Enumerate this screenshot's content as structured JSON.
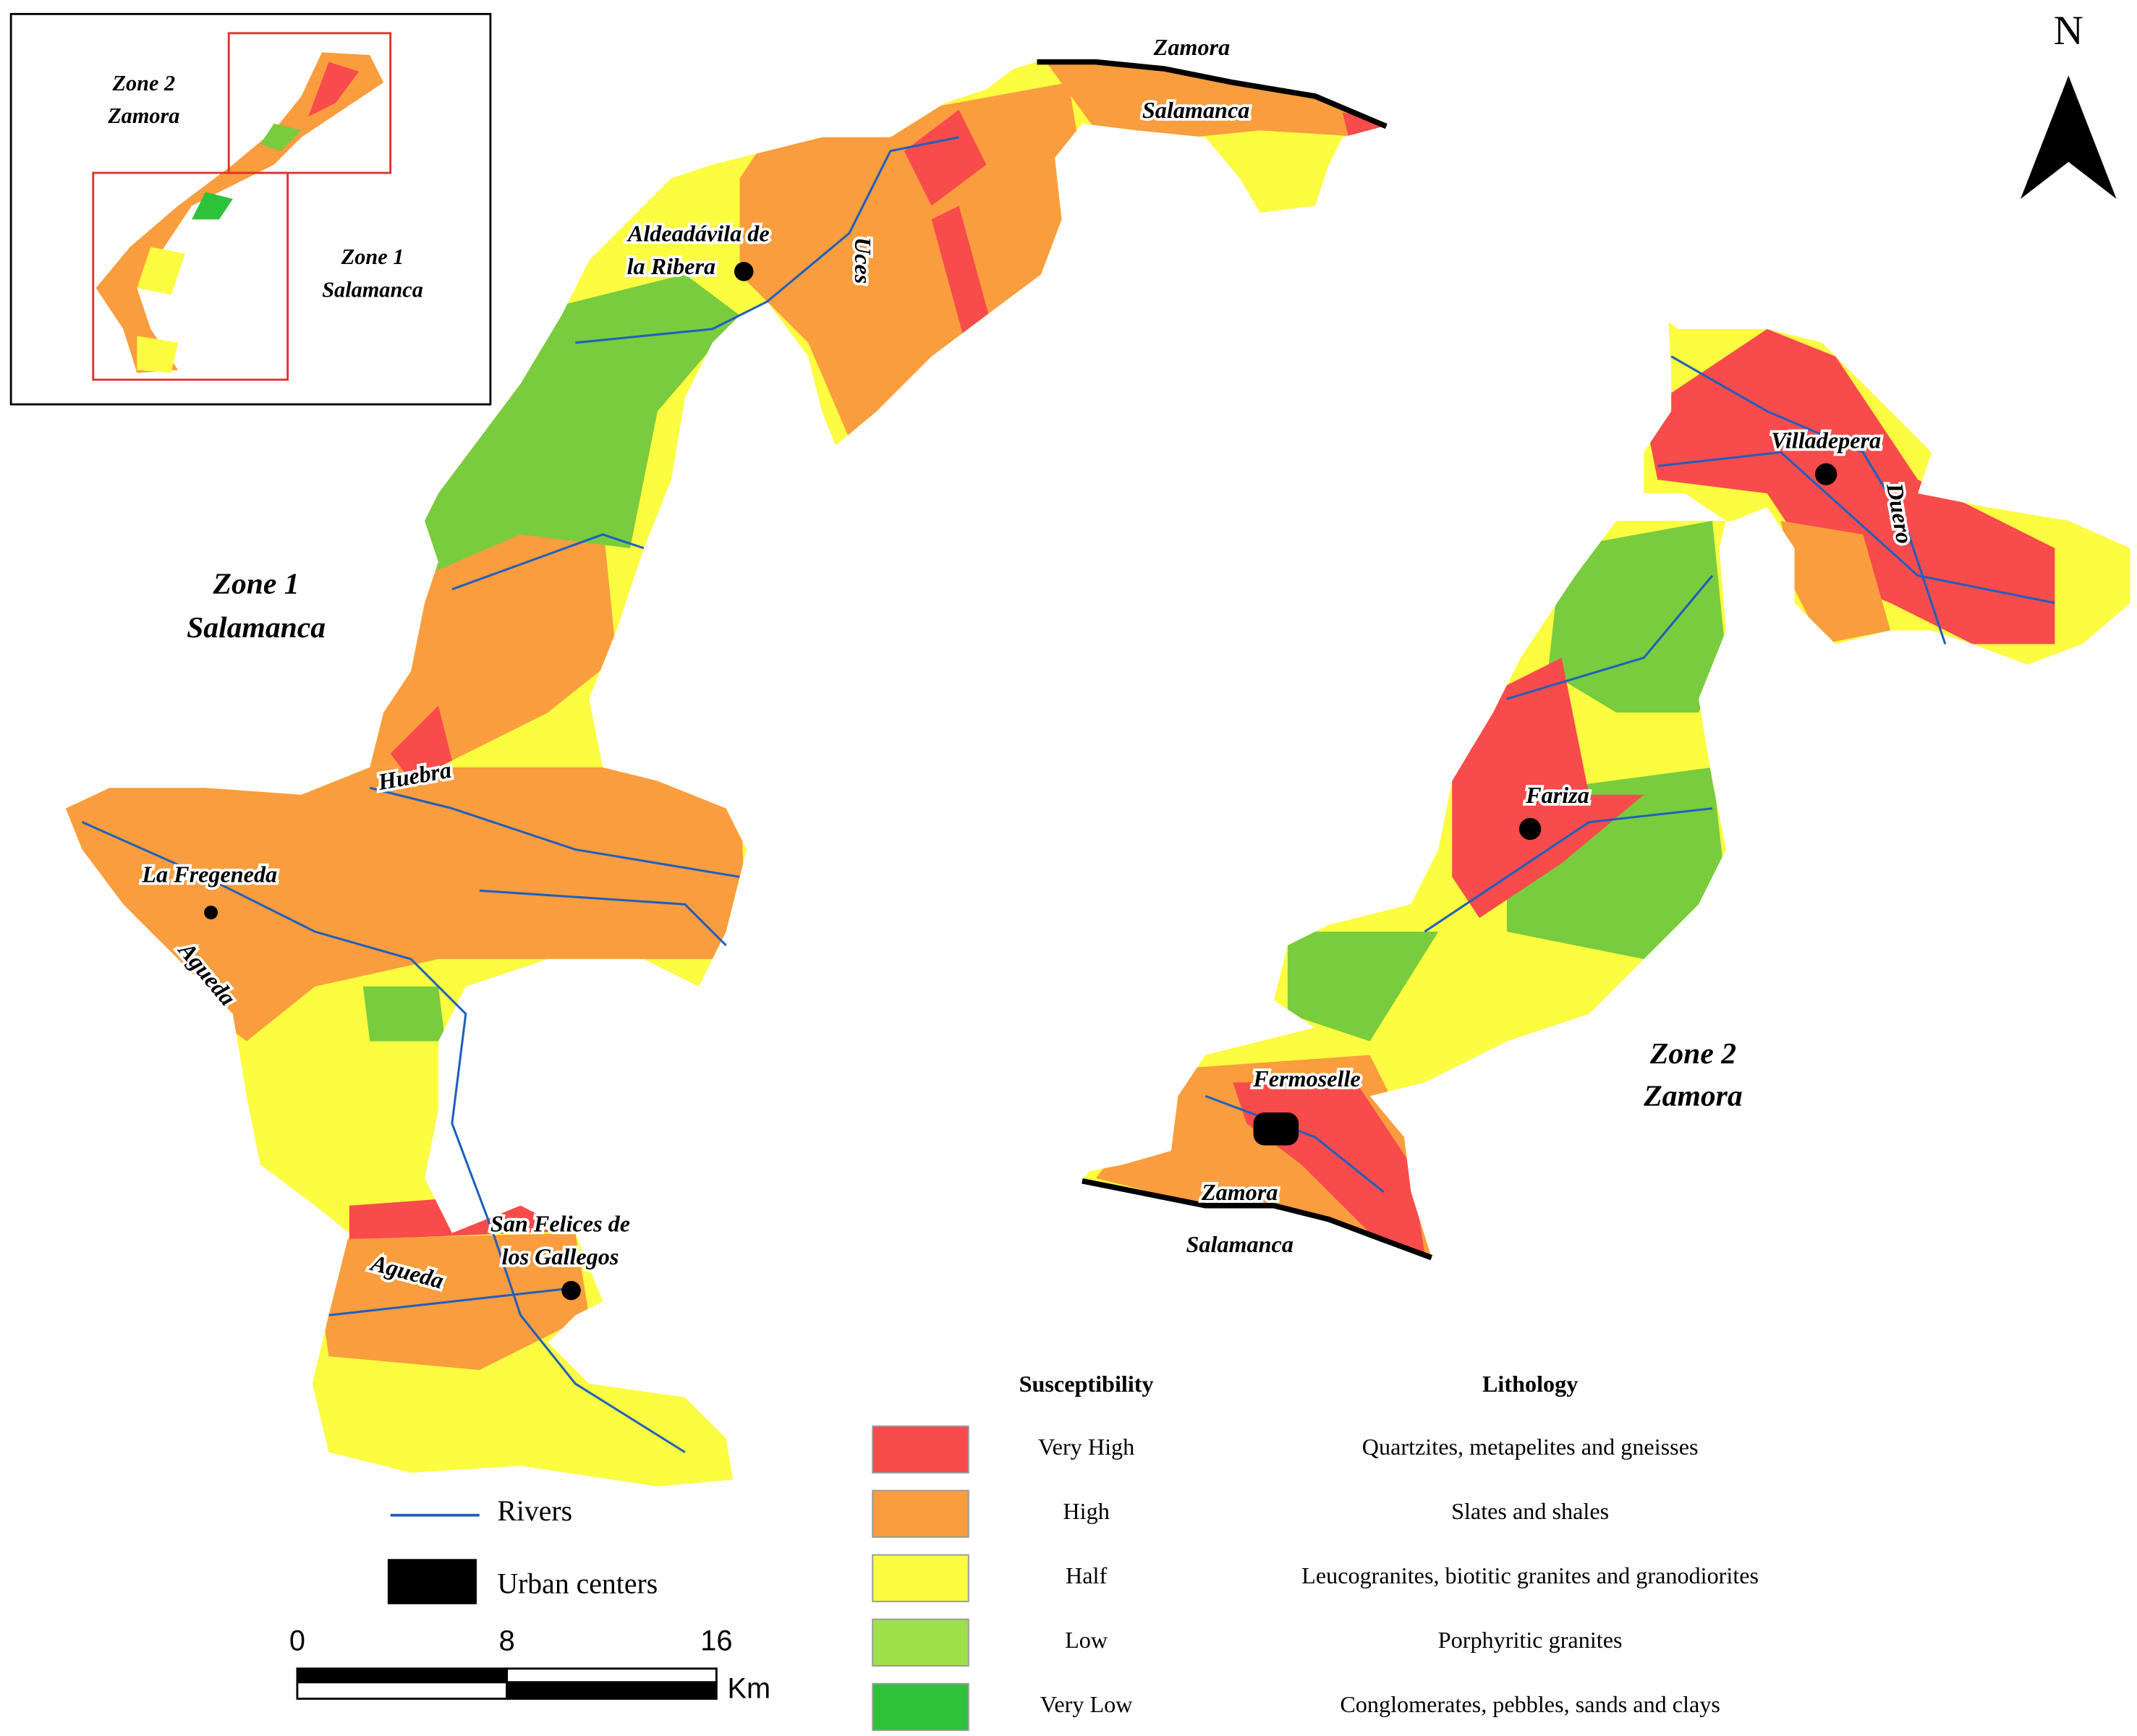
{
  "inset": {
    "zone2": [
      "Zone 2",
      "Zamora"
    ],
    "zone1": [
      "Zone 1",
      "Salamanca"
    ]
  },
  "north": "N",
  "zones": {
    "zone1": [
      "Zone 1",
      "Salamanca"
    ],
    "zone2": [
      "Zone 2",
      "Zamora"
    ]
  },
  "borders": {
    "top": [
      "Zamora",
      "Salamanca"
    ],
    "bottom": [
      "Zamora",
      "Salamanca"
    ]
  },
  "places": {
    "aldeadavila": [
      "Aldeadávila de",
      "la Ribera"
    ],
    "fregeneda": "La Fregeneda",
    "san_felices": [
      "San Felices de",
      "los Gallegos"
    ],
    "villadepera": "Villadepera",
    "fariza": "Fariza",
    "fermoselle": "Fermoselle"
  },
  "rivers": {
    "uces": "Uces",
    "huebra": "Huebra",
    "agueda_north": "Agueda",
    "agueda_south": "Agueda",
    "duero": "Duero"
  },
  "legend": {
    "rivers": "Rivers",
    "urban": "Urban centers"
  },
  "scale": {
    "ticks": [
      0,
      8,
      16
    ],
    "unit": "Km"
  },
  "susceptibility": {
    "heading": "Susceptibility",
    "lithology_heading": "Lithology",
    "rows": [
      {
        "level": "Very High",
        "lithology": "Quartzites, metapelites and gneisses",
        "color": "#f84b4b"
      },
      {
        "level": "High",
        "lithology": "Slates and shales",
        "color": "#f99d3e"
      },
      {
        "level": "Half",
        "lithology": "Leucogranites, biotitic granites and granodiorites",
        "color": "#fcfc40"
      },
      {
        "level": "Low",
        "lithology": "Porphyritic granites",
        "color": "#9ee04a"
      },
      {
        "level": "Very Low",
        "lithology": "Conglomerates, pebbles, sands and clays",
        "color": "#2ec23a"
      }
    ]
  }
}
